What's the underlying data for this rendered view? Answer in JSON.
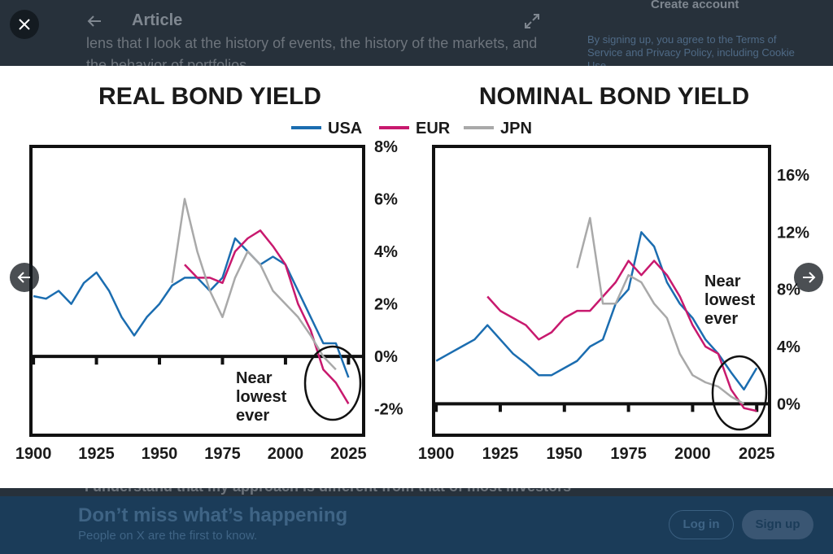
{
  "page": {
    "header_title": "Article",
    "body_lines": [
      "lens that I look at the history of events, the history of the markets, and",
      "the behavior of portfolios",
      "I understand that my approach is different from that of most investors"
    ],
    "sidebar_title": "Create account",
    "sidebar_text": "By signing up, you agree to the Terms of Service and Privacy Policy, including Cookie Use.",
    "banner_title": "Don’t miss what’s happening",
    "banner_subtitle": "People on X are the first to know.",
    "login": "Log in",
    "signup": "Sign up"
  },
  "chart_data": [
    {
      "type": "line",
      "title": "REAL BOND YIELD",
      "annotation": [
        "Near",
        "lowest",
        "ever"
      ],
      "x": [
        1900,
        1905,
        1910,
        1915,
        1920,
        1925,
        1930,
        1935,
        1940,
        1945,
        1950,
        1955,
        1960,
        1965,
        1970,
        1975,
        1980,
        1985,
        1990,
        1995,
        2000,
        2005,
        2010,
        2015,
        2020,
        2025
      ],
      "xlim": [
        1899,
        2031
      ],
      "xticks": [
        1900,
        1925,
        1950,
        1975,
        2000,
        2025
      ],
      "ylim": [
        -3,
        8
      ],
      "yticks": [
        {
          "value": -2,
          "label": "-2%"
        },
        {
          "value": 0,
          "label": "0%"
        },
        {
          "value": 2,
          "label": "2%"
        },
        {
          "value": 4,
          "label": "4%"
        },
        {
          "value": 6,
          "label": "6%"
        },
        {
          "value": 8,
          "label": "8%"
        }
      ],
      "series": [
        {
          "name": "USA",
          "color": "#1b6db0",
          "values": [
            2.3,
            2.2,
            2.5,
            2.0,
            2.8,
            3.2,
            2.5,
            1.5,
            0.8,
            1.5,
            2.0,
            2.7,
            3.0,
            3.0,
            2.5,
            3.0,
            4.5,
            4.0,
            3.5,
            3.8,
            3.5,
            2.5,
            1.5,
            0.5,
            0.5,
            -0.8
          ]
        },
        {
          "name": "EUR",
          "color": "#c8196e",
          "values": [
            null,
            null,
            null,
            null,
            null,
            null,
            null,
            null,
            null,
            null,
            null,
            null,
            3.5,
            3.0,
            3.0,
            2.8,
            4.0,
            4.5,
            4.8,
            4.2,
            3.5,
            2.0,
            1.0,
            -0.5,
            -1.0,
            -1.8
          ]
        },
        {
          "name": "JPN",
          "color": "#a9a9a9",
          "values": [
            null,
            null,
            null,
            null,
            null,
            null,
            null,
            null,
            null,
            null,
            null,
            2.8,
            6.0,
            4.0,
            2.5,
            1.5,
            3.0,
            4.0,
            3.5,
            2.5,
            2.0,
            1.5,
            0.8,
            0.0,
            -0.5,
            null
          ]
        }
      ]
    },
    {
      "type": "line",
      "title": "NOMINAL BOND YIELD",
      "annotation": [
        "Near",
        "lowest",
        "ever"
      ],
      "x": [
        1900,
        1905,
        1910,
        1915,
        1920,
        1925,
        1930,
        1935,
        1940,
        1945,
        1950,
        1955,
        1960,
        1965,
        1970,
        1975,
        1980,
        1985,
        1990,
        1995,
        2000,
        2005,
        2010,
        2015,
        2020,
        2025
      ],
      "xlim": [
        1899,
        2030
      ],
      "xticks": [
        1900,
        1925,
        1950,
        1975,
        2000,
        2025
      ],
      "ylim": [
        -2.2,
        18
      ],
      "yticks": [
        {
          "value": 0,
          "label": "0%"
        },
        {
          "value": 4,
          "label": "4%"
        },
        {
          "value": 8,
          "label": "8%"
        },
        {
          "value": 12,
          "label": "12%"
        },
        {
          "value": 16,
          "label": "16%"
        }
      ],
      "series": [
        {
          "color": "#1b6db0",
          "values": [
            3.0,
            3.5,
            4.0,
            4.5,
            5.5,
            4.5,
            3.5,
            2.8,
            2.0,
            2.0,
            2.5,
            3.0,
            4.0,
            4.5,
            7.0,
            8.0,
            12.0,
            11.0,
            8.5,
            7.0,
            6.0,
            4.5,
            3.5,
            2.2,
            1.0,
            2.5
          ]
        },
        {
          "color": "#c8196e",
          "values": [
            null,
            null,
            null,
            null,
            7.5,
            6.5,
            6.0,
            5.5,
            4.5,
            5.0,
            6.0,
            6.5,
            6.5,
            7.5,
            8.5,
            10.0,
            9.0,
            10.0,
            9.0,
            7.5,
            5.5,
            4.0,
            3.5,
            1.0,
            -0.3,
            -0.5
          ]
        },
        {
          "color": "#a9a9a9",
          "values": [
            null,
            null,
            null,
            null,
            null,
            null,
            null,
            null,
            null,
            null,
            null,
            9.5,
            13.0,
            7.0,
            7.0,
            9.0,
            8.5,
            7.0,
            6.0,
            3.5,
            2.0,
            1.5,
            1.2,
            0.5,
            0.0,
            null
          ]
        }
      ]
    }
  ]
}
